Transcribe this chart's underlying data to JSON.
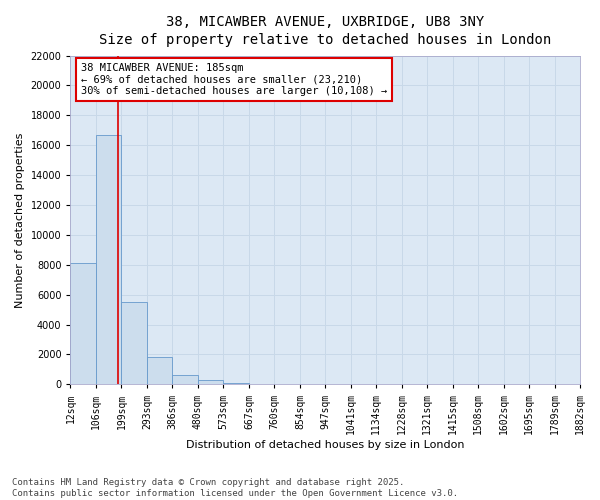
{
  "title_line1": "38, MICAWBER AVENUE, UXBRIDGE, UB8 3NY",
  "title_line2": "Size of property relative to detached houses in London",
  "xlabel": "Distribution of detached houses by size in London",
  "ylabel": "Number of detached properties",
  "bar_values": [
    8100,
    16700,
    5500,
    1800,
    650,
    300,
    100,
    50,
    20,
    10,
    5,
    3,
    2,
    1,
    1,
    1,
    0,
    0,
    0,
    0
  ],
  "bin_edges": [
    12,
    106,
    199,
    293,
    386,
    480,
    573,
    667,
    760,
    854,
    947,
    1041,
    1134,
    1228,
    1321,
    1415,
    1508,
    1602,
    1695,
    1789,
    1882
  ],
  "bar_color": "#ccdded",
  "bar_edge_color": "#6699cc",
  "red_line_x": 185,
  "annotation_text": "38 MICAWBER AVENUE: 185sqm\n← 69% of detached houses are smaller (23,210)\n30% of semi-detached houses are larger (10,108) →",
  "annotation_box_color": "#ffffff",
  "annotation_edge_color": "#dd0000",
  "red_line_color": "#dd0000",
  "ylim": [
    0,
    22000
  ],
  "yticks": [
    0,
    2000,
    4000,
    6000,
    8000,
    10000,
    12000,
    14000,
    16000,
    18000,
    20000,
    22000
  ],
  "grid_color": "#c8d8e8",
  "background_color": "#dce8f4",
  "footer_line1": "Contains HM Land Registry data © Crown copyright and database right 2025.",
  "footer_line2": "Contains public sector information licensed under the Open Government Licence v3.0.",
  "title_fontsize": 10,
  "axis_label_fontsize": 8,
  "tick_fontsize": 7,
  "footer_fontsize": 6.5,
  "annotation_fontsize": 7.5
}
